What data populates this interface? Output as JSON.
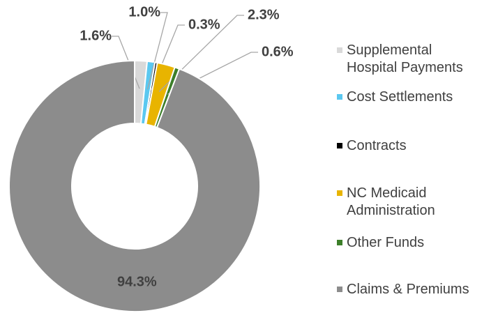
{
  "chart_data": {
    "type": "donut",
    "categories": [
      "Supplemental Hospital Payments",
      "Cost Settlements",
      "Contracts",
      "NC Medicaid Administration",
      "Other Funds",
      "Claims & Premiums"
    ],
    "values": [
      1.6,
      1.0,
      0.3,
      2.3,
      0.6,
      94.3
    ],
    "value_labels": [
      "1.6%",
      "1.0%",
      "0.3%",
      "2.3%",
      "0.6%",
      "94.3%"
    ],
    "colors": [
      "#d9d9d9",
      "#5bc8f0",
      "#000000",
      "#e8b400",
      "#3d7f2a",
      "#8c8c8c"
    ],
    "legend": "right"
  }
}
